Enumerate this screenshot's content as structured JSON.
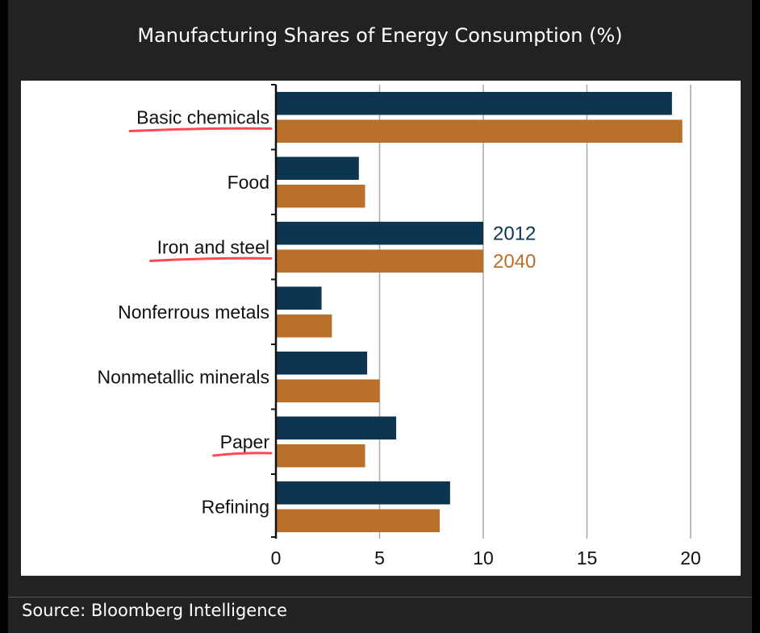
{
  "title": "Manufacturing Shares of Energy Consumption (%)",
  "source": "Source: Bloomberg Intelligence",
  "colors": {
    "background": "#222222",
    "series_2012": "#0d3550",
    "series_2040": "#b8702a",
    "underline": "#ff4a55"
  },
  "chart_data": {
    "type": "bar",
    "orientation": "horizontal",
    "categories": [
      "Basic chemicals",
      "Food",
      "Iron and steel",
      "Nonferrous metals",
      "Nonmetallic minerals",
      "Paper",
      "Refining"
    ],
    "underlined_categories": [
      "Basic chemicals",
      "Iron and steel",
      "Paper"
    ],
    "series": [
      {
        "name": "2012",
        "values": [
          19.1,
          4.0,
          10.0,
          2.2,
          4.4,
          5.8,
          8.4
        ]
      },
      {
        "name": "2040",
        "values": [
          19.6,
          4.3,
          10.0,
          2.7,
          5.0,
          4.3,
          7.9
        ]
      }
    ],
    "xlim": [
      0,
      20
    ],
    "xticks": [
      "0",
      "5",
      "10",
      "15",
      "20"
    ],
    "grid": "vertical",
    "legend": "inline labels beside Iron and steel bars"
  }
}
